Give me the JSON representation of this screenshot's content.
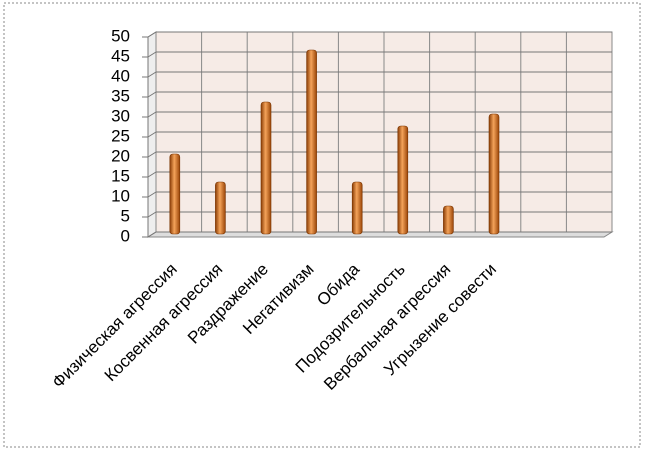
{
  "chart_data": {
    "type": "bar",
    "categories": [
      "Физическая агрессия",
      "Косвенная агрессия",
      "Раздражение",
      "Негативизм",
      "Обида",
      "Подозрительность",
      "Вербальная агрессия",
      "Угрызение совести",
      null,
      null
    ],
    "values": [
      20,
      13,
      33,
      46,
      13,
      27,
      7,
      30,
      null,
      null
    ],
    "color": "#e07b20",
    "ylim": [
      0,
      50
    ],
    "yticks": [
      0,
      5,
      10,
      15,
      20,
      25,
      30,
      35,
      40,
      45,
      50
    ],
    "grid": true
  }
}
